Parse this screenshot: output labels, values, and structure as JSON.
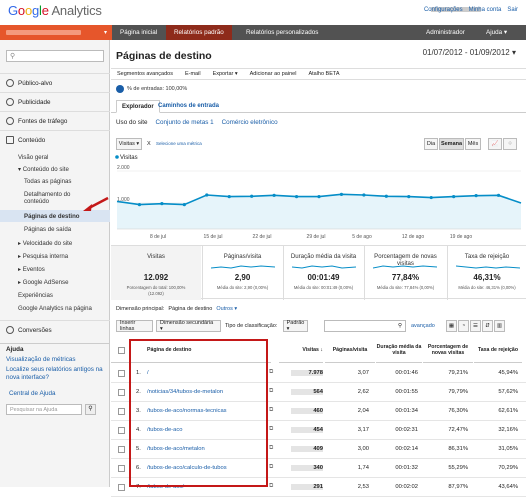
{
  "topbar": {
    "logo_google": "Google",
    "logo_analytics": "Analytics",
    "links": [
      "Configurações",
      "Minha conta",
      "Sair"
    ]
  },
  "nav": {
    "tabs": [
      "Página inicial",
      "Relatórios padrão",
      "Relatórios personalizados"
    ],
    "admin": "Administrador",
    "help": "Ajuda ▾",
    "active": 1
  },
  "sidebar": {
    "search_placeholder": "",
    "sections": [
      "Público-alvo",
      "Publicidade",
      "Fontes de tráfego",
      "Conteúdo",
      "Conversões"
    ],
    "content_items": [
      "Visão geral",
      "▾ Conteúdo do site",
      "Todas as páginas",
      "Detalhamento do conteúdo",
      "Páginas de destino",
      "Páginas de saída",
      "▸ Velocidade do site",
      "▸ Pesquisa interna",
      "▸ Eventos",
      "▸ Google AdSense",
      "Experiências",
      "Google Analytics na página"
    ],
    "help_title": "Ajuda",
    "help_links": [
      "Visualização de métricas",
      "Localize seus relatórios antigos na nova interface?",
      "Central de Ajuda"
    ],
    "help_search_placeholder": "Pesquisar na Ajuda"
  },
  "page": {
    "title": "Páginas de destino",
    "date_range": "01/07/2012 - 01/09/2012 ▾",
    "toolbar": [
      "Segmentos avançados",
      "E-mail",
      "Exportar ▾",
      "Adicionar ao painel",
      "Atalho BETA"
    ],
    "segment": "% de entradas: 100,00%",
    "view_tabs": [
      "Explorador",
      "Caminhos de entrada"
    ],
    "subtabs": [
      "Uso do site",
      "Conjunto de metas 1",
      "Comércio eletrônico"
    ],
    "chart_select": "Visitas",
    "chart_vs": "X",
    "chart_metric_link": "Selecione uma métrica",
    "period_buttons": [
      "Dia",
      "Semana",
      "Mês"
    ],
    "period_active": 1
  },
  "chart_data": {
    "type": "line",
    "legend": "Visitas",
    "series": [
      {
        "name": "Visitas",
        "values": [
          1050,
          950,
          980,
          950,
          1250,
          1200,
          1210,
          1240,
          1200,
          1200,
          1270,
          1250,
          1210,
          1200,
          1170,
          1200,
          1230,
          1240,
          1000
        ]
      }
    ],
    "ytick_labels": [
      "2.000",
      "1.000"
    ],
    "ylim": [
      0,
      2000
    ],
    "xtick_labels": [
      "8 de jul",
      "15 de jul",
      "22 de jul",
      "29 de jul",
      "5 de ago",
      "12 de ago",
      "19 de ago"
    ]
  },
  "metrics": [
    {
      "label": "Visitas",
      "value": "12.092",
      "sub": "Porcentagem do total: 100,00% (12.092)"
    },
    {
      "label": "Páginas/visita",
      "value": "2,90",
      "sub": "Média do site: 2,90 (0,00%)"
    },
    {
      "label": "Duração média da visita",
      "value": "00:01:49",
      "sub": "Média do site: 00:01:49 (0,00%)"
    },
    {
      "label": "Porcentagem de novas visitas",
      "value": "77,84%",
      "sub": "Média do site: 77,84% (0,00%)"
    },
    {
      "label": "Taxa de rejeição",
      "value": "46,31%",
      "sub": "Média do site: 46,31% (0,00%)"
    }
  ],
  "dimension": {
    "label": "Dimensão principal:",
    "value": "Página de destino",
    "other": "Outros ▾"
  },
  "table_controls": {
    "insert_rows": "Inserir linhas",
    "secondary": "Dimensão secundária ▾",
    "sort": "Tipo de classificação:",
    "sort_value": "Padrão ▾",
    "advanced": "avançado"
  },
  "table": {
    "headers": [
      "Página de destino",
      "Visitas",
      "Páginas/visita",
      "Duração média da visita",
      "Porcentagem de novas visitas",
      "Taxa de rejeição"
    ],
    "rows": [
      {
        "n": "1.",
        "page": "/",
        "visits": "7.978",
        "ppv": "3,07",
        "dur": "00:01:46",
        "new": "79,21%",
        "bounce": "45,94%"
      },
      {
        "n": "2.",
        "page": "/noticias/34/tubos-de-metalon",
        "visits": "564",
        "ppv": "2,62",
        "dur": "00:01:55",
        "new": "79,79%",
        "bounce": "57,62%"
      },
      {
        "n": "3.",
        "page": "/tubos-de-aco/normas-tecnicas",
        "visits": "460",
        "ppv": "2,04",
        "dur": "00:01:34",
        "new": "76,30%",
        "bounce": "62,61%"
      },
      {
        "n": "4.",
        "page": "/tubos-de-aco",
        "visits": "454",
        "ppv": "3,17",
        "dur": "00:02:31",
        "new": "72,47%",
        "bounce": "32,16%"
      },
      {
        "n": "5.",
        "page": "/tubos-de-aco/metalon",
        "visits": "409",
        "ppv": "3,00",
        "dur": "00:02:14",
        "new": "86,31%",
        "bounce": "31,05%"
      },
      {
        "n": "6.",
        "page": "/tubos-de-aco/calculo-de-tubos",
        "visits": "340",
        "ppv": "1,74",
        "dur": "00:01:32",
        "new": "55,29%",
        "bounce": "70,29%"
      },
      {
        "n": "7.",
        "page": "/tubos-de-aco/",
        "visits": "291",
        "ppv": "2,53",
        "dur": "00:02:02",
        "new": "87,97%",
        "bounce": "43,64%"
      }
    ]
  },
  "colors": {
    "orange": "#e6562b",
    "nav": "#525252",
    "link": "#1a5ea8",
    "chart": "#058dc7",
    "highlight": "#c41818"
  }
}
